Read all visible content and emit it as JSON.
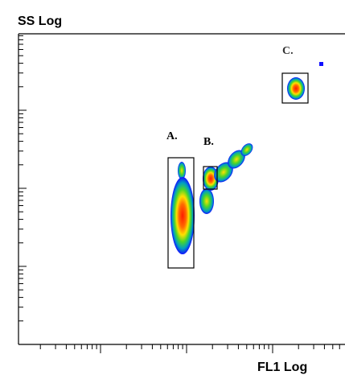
{
  "axes": {
    "y_label": "SS Log",
    "x_label": "FL1 Log"
  },
  "gates": [
    {
      "label": "A."
    },
    {
      "label": "B."
    },
    {
      "label": "C."
    }
  ]
}
